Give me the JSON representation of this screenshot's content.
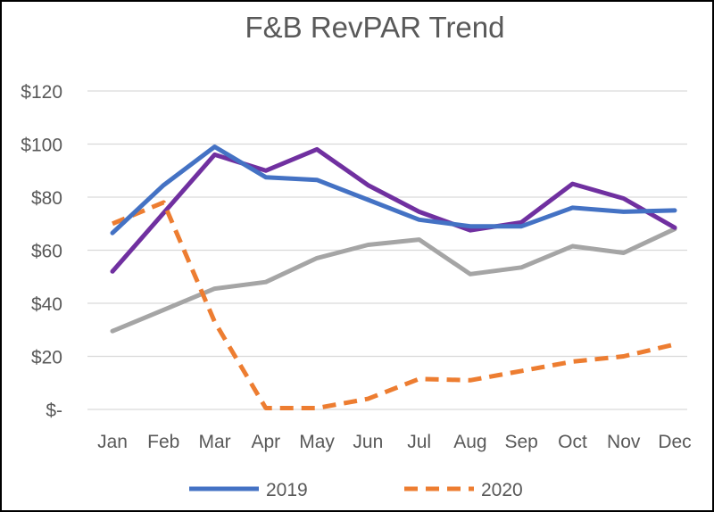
{
  "chart_data": {
    "type": "line",
    "title": "F&B RevPAR Trend",
    "xlabel": "",
    "ylabel": "",
    "ylim": [
      0,
      120
    ],
    "y_ticks": [
      0,
      20,
      40,
      60,
      80,
      100,
      120
    ],
    "y_tick_labels": [
      "$-",
      "$20",
      "$40",
      "$60",
      "$80",
      "$100",
      "$120"
    ],
    "categories": [
      "Jan",
      "Feb",
      "Mar",
      "Apr",
      "May",
      "Jun",
      "Jul",
      "Aug",
      "Sep",
      "Oct",
      "Nov",
      "Dec"
    ],
    "grid": "horizontal",
    "legend_position": "bottom",
    "series": [
      {
        "name": "2019",
        "color": "#4472C4",
        "style": "solid",
        "in_legend": true,
        "values": [
          66.5,
          84.5,
          99,
          87.5,
          86.5,
          79,
          71.5,
          69,
          69,
          76,
          74.5,
          75
        ]
      },
      {
        "name": "2020",
        "color": "#ED7D31",
        "style": "dashed",
        "in_legend": true,
        "values": [
          70,
          78,
          33,
          0.5,
          0.5,
          4,
          11.5,
          11,
          14.5,
          18,
          20,
          24.5
        ]
      },
      {
        "name": "",
        "color": "#A5A5A5",
        "style": "solid",
        "in_legend": false,
        "values": [
          29.5,
          37.5,
          45.5,
          48,
          57,
          62,
          64,
          51,
          53.5,
          61.5,
          59,
          68
        ]
      },
      {
        "name": "",
        "color": "#7030A0",
        "style": "solid",
        "in_legend": false,
        "values": [
          52,
          74,
          96,
          90,
          98,
          84.5,
          74.5,
          67.5,
          70.5,
          85,
          79.5,
          68.5
        ]
      }
    ]
  }
}
